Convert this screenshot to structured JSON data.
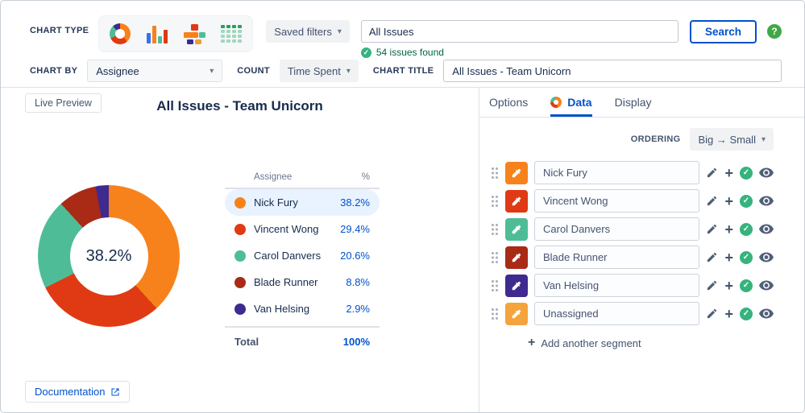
{
  "toolbar": {
    "chart_type_label": "CHART TYPE",
    "saved_filters_label": "Saved filters",
    "search_value": "All Issues",
    "search_button_label": "Search",
    "issues_found_text": "54 issues found",
    "chart_by_label": "CHART BY",
    "chart_by_value": "Assignee",
    "count_label": "COUNT",
    "count_value": "Time Spent",
    "chart_title_label": "CHART TITLE",
    "chart_title_value": "All Issues - Team Unicorn"
  },
  "preview": {
    "tab_label": "Live Preview",
    "documentation_label": "Documentation"
  },
  "chart_data": {
    "type": "pie",
    "title": "All Issues - Team Unicorn",
    "center_label": "38.2%",
    "legend_headers": [
      "Assignee",
      "%"
    ],
    "segments": [
      {
        "label": "Nick Fury",
        "value": 38.2,
        "percent_label": "38.2%",
        "color": "#F7821B",
        "highlighted": true
      },
      {
        "label": "Vincent Wong",
        "value": 29.4,
        "percent_label": "29.4%",
        "color": "#E03A14",
        "highlighted": false
      },
      {
        "label": "Carol Danvers",
        "value": 20.6,
        "percent_label": "20.6%",
        "color": "#4EBD97",
        "highlighted": false
      },
      {
        "label": "Blade Runner",
        "value": 8.8,
        "percent_label": "8.8%",
        "color": "#A92A15",
        "highlighted": false
      },
      {
        "label": "Van Helsing",
        "value": 2.9,
        "percent_label": "2.9%",
        "color": "#3F2A8F",
        "highlighted": false
      }
    ],
    "total_label": "Total",
    "total_value": "100%"
  },
  "panel": {
    "tabs": [
      {
        "label": "Options",
        "active": false
      },
      {
        "label": "Data",
        "active": true
      },
      {
        "label": "Display",
        "active": false
      }
    ],
    "ordering_label": "ORDERING",
    "ordering_value": "Big → Small",
    "segments": [
      {
        "name": "Nick Fury",
        "color": "#F7821B"
      },
      {
        "name": "Vincent Wong",
        "color": "#E03A14"
      },
      {
        "name": "Carol Danvers",
        "color": "#4EBD97"
      },
      {
        "name": "Blade Runner",
        "color": "#A92A15"
      },
      {
        "name": "Van Helsing",
        "color": "#3F2A8F"
      },
      {
        "name": "Unassigned",
        "color": "#F5A33C"
      }
    ],
    "add_segment_label": "Add another segment"
  },
  "colors": {
    "accent_blue": "#0052CC",
    "success_green": "#36B37E",
    "highlight_row": "#E9F2FF"
  }
}
